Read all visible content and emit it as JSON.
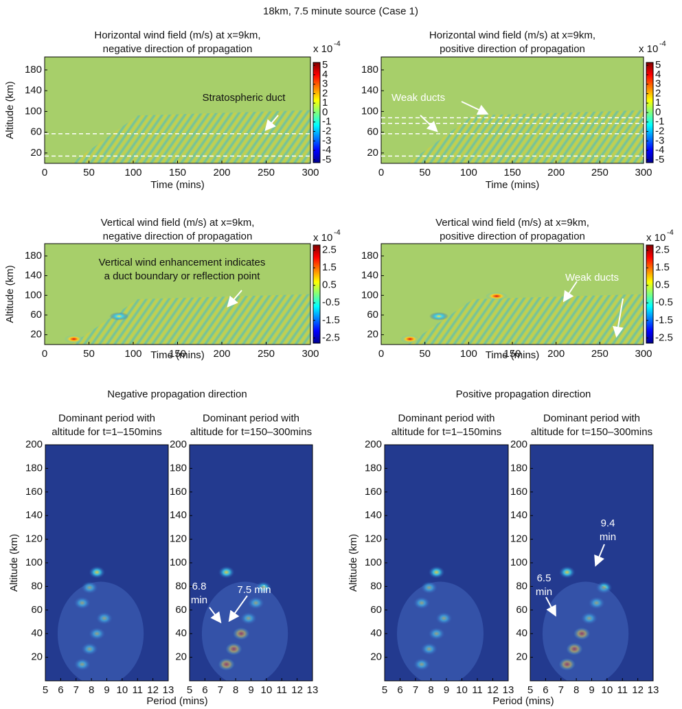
{
  "title": "18km, 7.5 minute source (Case 1)",
  "section_titles": [
    "Negative propagation direction",
    "Positive propagation direction"
  ],
  "chart_data": [
    {
      "type": "heatmap",
      "title": [
        "Horizontal wind field (m/s) at x=9km,",
        "negative direction of propagation"
      ],
      "xlabel": "Time (mins)",
      "ylabel": "Altitude (km)",
      "xlim": [
        0,
        300
      ],
      "ylim": [
        0,
        205
      ],
      "xticks": [
        0,
        50,
        100,
        150,
        200,
        250,
        300
      ],
      "yticks": [
        20,
        60,
        100,
        140,
        180
      ],
      "colorbar": {
        "label": "x 10",
        "exponent": "-4",
        "lim": [
          -5.3,
          5.3
        ],
        "ticks": [
          5,
          4,
          3,
          2,
          1,
          0,
          -1,
          -2,
          -3,
          -4,
          -5
        ]
      },
      "hlines": [
        57,
        14
      ],
      "annotations": [
        [
          "Stratospheric duct"
        ]
      ]
    },
    {
      "type": "heatmap",
      "title": [
        "Horizontal wind field (m/s) at x=9km,",
        "positive direction of propagation"
      ],
      "xlabel": "Time (mins)",
      "xlim": [
        0,
        300
      ],
      "ylim": [
        0,
        205
      ],
      "xticks": [
        0,
        50,
        100,
        150,
        200,
        250,
        300
      ],
      "yticks": [
        20,
        60,
        100,
        140,
        180
      ],
      "colorbar": {
        "label": "x 10",
        "exponent": "-4",
        "lim": [
          -5.3,
          5.3
        ],
        "ticks": [
          5,
          4,
          3,
          2,
          1,
          0,
          -1,
          -2,
          -3,
          -4,
          -5
        ]
      },
      "hlines": [
        88,
        77,
        57,
        14
      ],
      "annotations": [
        [
          "Weak ducts"
        ]
      ]
    },
    {
      "type": "heatmap",
      "title": [
        "Vertical wind field (m/s) at x=9km,",
        "negative direction of propagation"
      ],
      "xlabel": "Time (mins)",
      "ylabel": "Altitude (km)",
      "xlim": [
        0,
        300
      ],
      "ylim": [
        0,
        205
      ],
      "xticks": [
        0,
        50,
        100,
        150,
        200,
        250,
        300
      ],
      "yticks": [
        20,
        60,
        100,
        140,
        180
      ],
      "colorbar": {
        "label": "x 10",
        "exponent": "-4",
        "lim": [
          -2.8,
          2.8
        ],
        "ticks": [
          2.5,
          1.5,
          0.5,
          -0.5,
          -1.5,
          -2.5
        ]
      },
      "annotations": [
        [
          "Vertical wind enhancement indicates",
          "a duct boundary or reflection point"
        ]
      ]
    },
    {
      "type": "heatmap",
      "title": [
        "Vertical wind field (m/s) at x=9km,",
        "positive direction of propagation"
      ],
      "xlabel": "Time (mins)",
      "xlim": [
        0,
        300
      ],
      "ylim": [
        0,
        205
      ],
      "xticks": [
        0,
        50,
        100,
        150,
        200,
        250,
        300
      ],
      "yticks": [
        20,
        60,
        100,
        140,
        180
      ],
      "colorbar": {
        "label": "x 10",
        "exponent": "-4",
        "lim": [
          -2.8,
          2.8
        ],
        "ticks": [
          2.5,
          1.5,
          0.5,
          -0.5,
          -1.5,
          -2.5
        ]
      },
      "annotations": [
        [
          "Weak ducts"
        ]
      ]
    },
    {
      "type": "heatmap",
      "title": [
        "Dominant period with",
        "altitude for t=1–150mins"
      ],
      "xlabel": "Period (mins)",
      "ylabel": "Altitude (km)",
      "xlim": [
        5,
        13
      ],
      "ylim": [
        0,
        200
      ],
      "xticks": [
        5,
        6,
        7,
        8,
        9,
        10,
        11,
        12,
        13
      ],
      "yticks": [
        20,
        40,
        60,
        80,
        100,
        120,
        140,
        160,
        180,
        200
      ],
      "annotations": []
    },
    {
      "type": "heatmap",
      "title": [
        "Dominant period with",
        "altitude for t=150–300mins"
      ],
      "xlim": [
        5,
        13
      ],
      "ylim": [
        0,
        200
      ],
      "xticks": [
        5,
        6,
        7,
        8,
        9,
        10,
        11,
        12,
        13
      ],
      "yticks": [
        20,
        40,
        60,
        80,
        100,
        120,
        140,
        160,
        180,
        200
      ],
      "annotations": [
        [
          "6.8",
          "min"
        ],
        [
          "7.5 min"
        ]
      ]
    },
    {
      "type": "heatmap",
      "title": [
        "Dominant period with",
        "altitude for t=1–150mins"
      ],
      "xlabel": "Period (mins)",
      "ylabel": "Altitude (km)",
      "xlim": [
        5,
        13
      ],
      "ylim": [
        0,
        200
      ],
      "xticks": [
        5,
        6,
        7,
        8,
        9,
        10,
        11,
        12,
        13
      ],
      "yticks": [
        20,
        40,
        60,
        80,
        100,
        120,
        140,
        160,
        180,
        200
      ],
      "annotations": []
    },
    {
      "type": "heatmap",
      "title": [
        "Dominant period with",
        "altitude for t=150–300mins"
      ],
      "xlim": [
        5,
        13
      ],
      "ylim": [
        0,
        200
      ],
      "xticks": [
        5,
        6,
        7,
        8,
        9,
        10,
        11,
        12,
        13
      ],
      "yticks": [
        20,
        40,
        60,
        80,
        100,
        120,
        140,
        160,
        180,
        200
      ],
      "annotations": [
        [
          "9.4",
          "min"
        ],
        [
          "6.5",
          "min"
        ]
      ]
    }
  ]
}
